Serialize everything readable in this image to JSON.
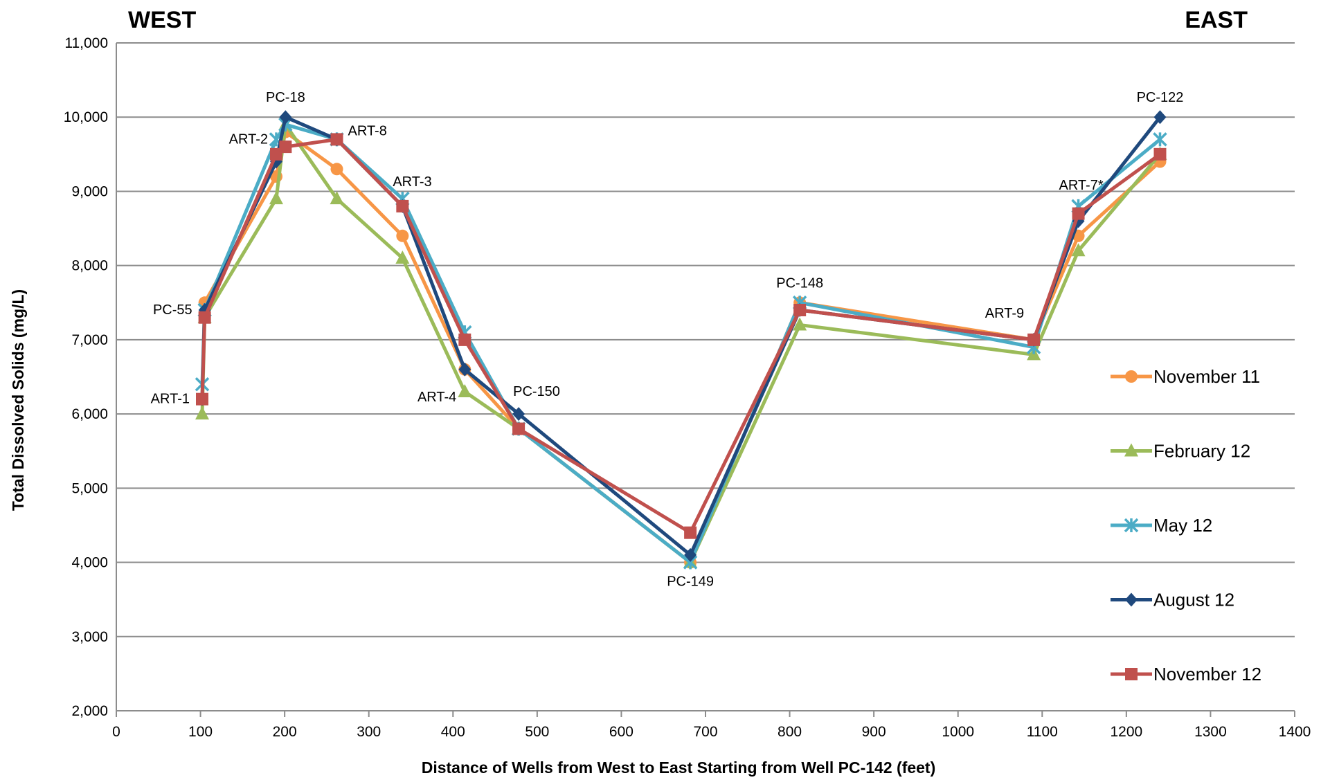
{
  "chart_data": {
    "type": "line",
    "corner_labels": {
      "left": "WEST",
      "right": "EAST"
    },
    "xlabel": "Distance of Wells from West to East Starting from Well PC-142 (feet)",
    "ylabel": "Total Dissolved Solids (mg/L)",
    "xlim": [
      0,
      1400
    ],
    "ylim": [
      2000,
      11000
    ],
    "x_ticks": [
      0,
      100,
      200,
      300,
      400,
      500,
      600,
      700,
      800,
      900,
      1000,
      1100,
      1200,
      1300,
      1400
    ],
    "y_ticks": [
      2000,
      3000,
      4000,
      5000,
      6000,
      7000,
      8000,
      9000,
      10000,
      11000
    ],
    "x_tick_labels": [
      "0",
      "100",
      "200",
      "300",
      "400",
      "500",
      "600",
      "700",
      "800",
      "900",
      "1000",
      "1100",
      "1200",
      "1300",
      "1400"
    ],
    "y_tick_labels": [
      "2,000",
      "3,000",
      "4,000",
      "5,000",
      "6,000",
      "7,000",
      "8,000",
      "9,000",
      "10,000",
      "11,000"
    ],
    "grid": "horizontal",
    "legend_position": "right",
    "well_labels": [
      {
        "text": "ART-1",
        "x": 102,
        "y": 6200,
        "anchor": "end",
        "dx": -18,
        "dy": 6
      },
      {
        "text": "PC-55",
        "x": 105,
        "y": 7400,
        "anchor": "end",
        "dx": -18,
        "dy": 6
      },
      {
        "text": "ART-2",
        "x": 190,
        "y": 9700,
        "anchor": "end",
        "dx": -12,
        "dy": 6
      },
      {
        "text": "PC-18",
        "x": 201,
        "y": 10000,
        "anchor": "middle",
        "dx": 0,
        "dy": -22
      },
      {
        "text": "ART-8",
        "x": 262,
        "y": 9700,
        "anchor": "start",
        "dx": 16,
        "dy": -6
      },
      {
        "text": "ART-3",
        "x": 340,
        "y": 8900,
        "anchor": "start",
        "dx": -14,
        "dy": -18
      },
      {
        "text": "ART-4",
        "x": 414,
        "y": 6300,
        "anchor": "end",
        "dx": -12,
        "dy": 14
      },
      {
        "text": "PC-150",
        "x": 478,
        "y": 6000,
        "anchor": "start",
        "dx": -8,
        "dy": -26
      },
      {
        "text": "PC-149",
        "x": 682,
        "y": 4000,
        "anchor": "middle",
        "dx": 0,
        "dy": 34
      },
      {
        "text": "PC-148",
        "x": 812,
        "y": 7500,
        "anchor": "middle",
        "dx": 0,
        "dy": -22
      },
      {
        "text": "ART-9",
        "x": 1090,
        "y": 7000,
        "anchor": "end",
        "dx": -14,
        "dy": -32
      },
      {
        "text": "ART-7*",
        "x": 1143,
        "y": 8800,
        "anchor": "middle",
        "dx": 4,
        "dy": -24
      },
      {
        "text": "PC-122",
        "x": 1240,
        "y": 10000,
        "anchor": "middle",
        "dx": 0,
        "dy": -22
      }
    ],
    "series": [
      {
        "name": "November 11",
        "color": "#F79646",
        "marker": "circle",
        "points": [
          [
            102,
            6200
          ],
          [
            105,
            7500
          ],
          [
            190,
            9200
          ],
          [
            201,
            9800
          ],
          [
            262,
            9300
          ],
          [
            340,
            8400
          ],
          [
            414,
            6600
          ],
          [
            478,
            5800
          ],
          [
            682,
            4000
          ],
          [
            812,
            7500
          ],
          [
            1090,
            7000
          ],
          [
            1143,
            8400
          ],
          [
            1240,
            9400
          ]
        ]
      },
      {
        "name": "February 12",
        "color": "#9BBB59",
        "marker": "triangle",
        "points": [
          [
            102,
            6000
          ],
          [
            105,
            7300
          ],
          [
            190,
            8900
          ],
          [
            201,
            9900
          ],
          [
            262,
            8900
          ],
          [
            340,
            8100
          ],
          [
            414,
            6300
          ],
          [
            478,
            5800
          ],
          [
            682,
            4000
          ],
          [
            812,
            7200
          ],
          [
            1090,
            6800
          ],
          [
            1143,
            8200
          ],
          [
            1240,
            9500
          ]
        ]
      },
      {
        "name": "May 12",
        "color": "#4BACC6",
        "marker": "star",
        "points": [
          [
            102,
            6400
          ],
          [
            105,
            7400
          ],
          [
            190,
            9700
          ],
          [
            201,
            9900
          ],
          [
            262,
            9700
          ],
          [
            340,
            8900
          ],
          [
            414,
            7100
          ],
          [
            478,
            5800
          ],
          [
            682,
            4000
          ],
          [
            812,
            7500
          ],
          [
            1090,
            6900
          ],
          [
            1143,
            8800
          ],
          [
            1240,
            9700
          ]
        ]
      },
      {
        "name": "August 12",
        "color": "#1F497D",
        "marker": "diamond",
        "points": [
          [
            102,
            6200
          ],
          [
            105,
            7400
          ],
          [
            190,
            9400
          ],
          [
            201,
            10000
          ],
          [
            262,
            9700
          ],
          [
            340,
            8800
          ],
          [
            414,
            6600
          ],
          [
            478,
            6000
          ],
          [
            682,
            4100
          ],
          [
            812,
            7400
          ],
          [
            1090,
            7000
          ],
          [
            1143,
            8600
          ],
          [
            1240,
            10000
          ]
        ]
      },
      {
        "name": "November 12",
        "color": "#C0504D",
        "marker": "square",
        "points": [
          [
            102,
            6200
          ],
          [
            105,
            7300
          ],
          [
            190,
            9500
          ],
          [
            201,
            9600
          ],
          [
            262,
            9700
          ],
          [
            340,
            8800
          ],
          [
            414,
            7000
          ],
          [
            478,
            5800
          ],
          [
            682,
            4400
          ],
          [
            812,
            7400
          ],
          [
            1090,
            7000
          ],
          [
            1143,
            8700
          ],
          [
            1240,
            9500
          ]
        ]
      }
    ]
  }
}
